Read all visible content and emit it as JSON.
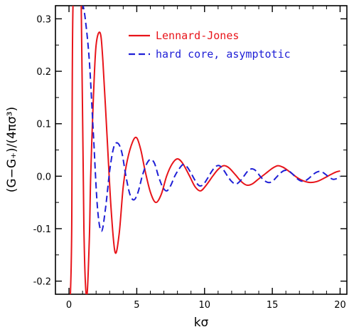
{
  "chart_data": {
    "type": "line",
    "title": "",
    "xlabel": "kσ",
    "ylabel": "(G−G₊)/(4πσ³)",
    "xlim": [
      -1,
      20.5
    ],
    "ylim": [
      -0.225,
      0.325
    ],
    "xticks": [
      0,
      5,
      10,
      15,
      20
    ],
    "yticks": [
      -0.2,
      -0.1,
      0.0,
      0.1,
      0.2,
      0.3
    ],
    "ytick_labels": [
      "-0.2",
      "-0.1",
      "0.0",
      "0.1",
      "0.2",
      "0.3"
    ],
    "grid": false,
    "legend_position": "top-right",
    "series": [
      {
        "name": "Lennard-Jones",
        "color": "#e8141a",
        "style": "solid",
        "x": [
          0.1,
          0.2,
          0.3,
          0.7,
          0.9,
          1.1,
          1.3,
          1.5,
          1.6,
          1.8,
          2.0,
          2.3,
          2.5,
          2.8,
          3.1,
          3.4,
          3.7,
          4.0,
          4.3,
          4.7,
          5.0,
          5.3,
          5.6,
          6.0,
          6.4,
          6.8,
          7.2,
          7.6,
          8.0,
          8.4,
          8.9,
          9.3,
          9.7,
          10.1,
          10.6,
          11.0,
          11.4,
          11.8,
          12.3,
          12.7,
          13.1,
          13.5,
          14.0,
          14.5,
          15.0,
          15.4,
          15.8,
          16.3,
          16.8,
          17.3,
          17.8,
          18.3,
          18.8,
          19.3,
          19.7,
          20.0
        ],
        "y": [
          -0.23,
          -0.1,
          0.33,
          0.33,
          0.33,
          -0.1,
          -0.23,
          -0.12,
          0.0,
          0.15,
          0.25,
          0.273,
          0.22,
          0.08,
          -0.06,
          -0.145,
          -0.11,
          -0.02,
          0.03,
          0.066,
          0.073,
          0.05,
          0.012,
          -0.03,
          -0.05,
          -0.035,
          0.0,
          0.023,
          0.033,
          0.024,
          0.0,
          -0.02,
          -0.028,
          -0.018,
          0.0,
          0.013,
          0.02,
          0.016,
          0.002,
          -0.01,
          -0.017,
          -0.015,
          -0.005,
          0.005,
          0.015,
          0.02,
          0.017,
          0.008,
          -0.002,
          -0.009,
          -0.012,
          -0.01,
          -0.004,
          0.003,
          0.008,
          0.01
        ]
      },
      {
        "name": "hard core, asymptotic",
        "color": "#1f1fd6",
        "style": "dashed",
        "x": [
          1.0,
          1.2,
          1.5,
          1.8,
          2.1,
          2.4,
          2.7,
          3.0,
          3.3,
          3.6,
          3.9,
          4.2,
          4.5,
          4.8,
          5.1,
          5.4,
          5.7,
          6.0,
          6.3,
          6.6,
          6.9,
          7.2,
          7.5,
          7.8,
          8.1,
          8.4,
          8.7,
          9.0,
          9.3,
          9.6,
          9.9,
          10.2,
          10.5,
          10.8,
          11.1,
          11.4,
          11.7,
          12.0,
          12.3,
          12.6,
          12.9,
          13.2,
          13.5,
          13.8,
          14.1,
          14.4,
          14.7,
          15.0,
          15.3,
          15.6,
          15.9,
          16.2,
          16.5,
          16.8,
          17.1,
          17.4,
          17.7,
          18.0,
          18.3,
          18.6,
          18.9,
          19.2,
          19.5,
          19.8,
          20.0
        ],
        "y": [
          0.33,
          0.3,
          0.22,
          0.08,
          -0.06,
          -0.105,
          -0.06,
          0.01,
          0.055,
          0.063,
          0.045,
          0.0,
          -0.035,
          -0.045,
          -0.03,
          0.0,
          0.022,
          0.032,
          0.025,
          0.0,
          -0.02,
          -0.028,
          -0.018,
          0.0,
          0.013,
          0.022,
          0.018,
          0.006,
          -0.008,
          -0.018,
          -0.016,
          -0.005,
          0.008,
          0.018,
          0.02,
          0.012,
          0.0,
          -0.01,
          -0.015,
          -0.01,
          0.0,
          0.01,
          0.014,
          0.01,
          0.0,
          -0.008,
          -0.012,
          -0.01,
          -0.002,
          0.006,
          0.011,
          0.01,
          0.004,
          -0.004,
          -0.009,
          -0.009,
          -0.004,
          0.003,
          0.008,
          0.009,
          0.004,
          -0.002,
          -0.006,
          -0.004,
          0.0
        ]
      }
    ]
  }
}
